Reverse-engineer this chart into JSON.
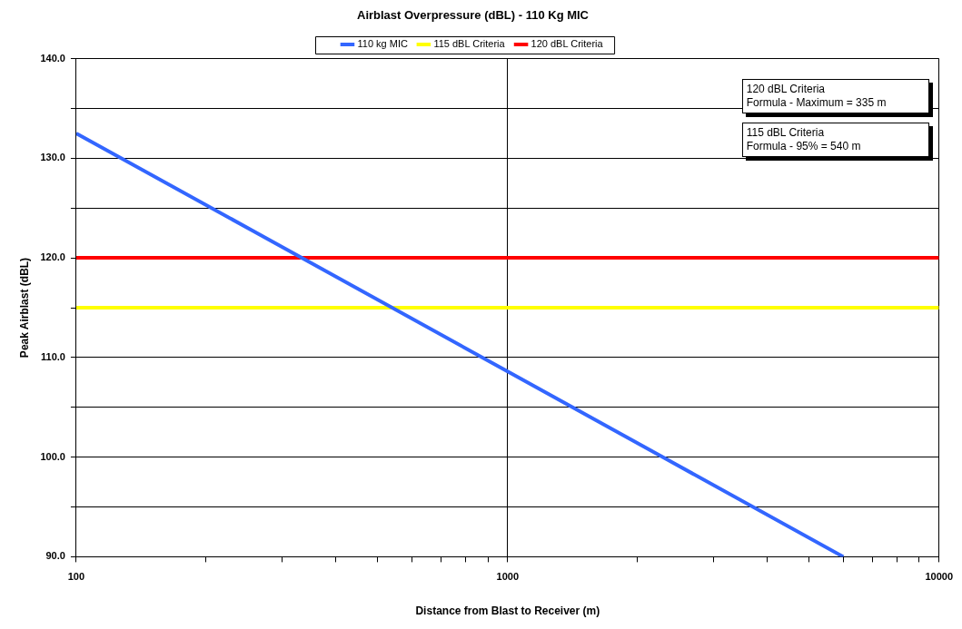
{
  "chart_data": {
    "type": "line",
    "title": "Airblast Overpressure (dBL) - 110 Kg MIC",
    "xlabel": "Distance from Blast to Receiver (m)",
    "ylabel": "Peak Airblast (dBL)",
    "log": "x",
    "xlim": [
      100,
      10000
    ],
    "ylim": [
      90,
      140
    ],
    "xticks": [
      100,
      {
        "value": 200,
        "label": null
      },
      {
        "value": 300,
        "label": null
      },
      {
        "value": 400,
        "label": null
      },
      {
        "value": 500,
        "label": null
      },
      {
        "value": 600,
        "label": null
      },
      {
        "value": 700,
        "label": null
      },
      {
        "value": 800,
        "label": null
      },
      {
        "value": 900,
        "label": null
      },
      1000,
      {
        "value": 2000,
        "label": null
      },
      {
        "value": 3000,
        "label": null
      },
      {
        "value": 4000,
        "label": null
      },
      {
        "value": 5000,
        "label": null
      },
      {
        "value": 6000,
        "label": null
      },
      {
        "value": 7000,
        "label": null
      },
      {
        "value": 8000,
        "label": null
      },
      {
        "value": 9000,
        "label": null
      },
      10000
    ],
    "yticks": [
      {
        "value": 90,
        "label": "90.0"
      },
      {
        "value": 95,
        "label": null
      },
      {
        "value": 100,
        "label": "100.0"
      },
      {
        "value": 105,
        "label": null
      },
      {
        "value": 110,
        "label": "110.0"
      },
      {
        "value": 115,
        "label": null
      },
      {
        "value": 120,
        "label": "120.0"
      },
      {
        "value": 125,
        "label": null
      },
      {
        "value": 130,
        "label": "130.0"
      },
      {
        "value": 135,
        "label": null
      },
      {
        "value": 140,
        "label": "140.0"
      }
    ],
    "grid": true,
    "legend": "top",
    "marker": "none",
    "line_style": "solid",
    "series": [
      {
        "name": "110 kg MIC",
        "color": "#3366ff",
        "x": [
          100,
          1000,
          6000
        ],
        "values": [
          132.5,
          108.6,
          90
        ]
      },
      {
        "name": "115 dBL Criteria",
        "color": "#ffff00",
        "x": [
          100,
          10000
        ],
        "values": [
          115,
          115
        ]
      },
      {
        "name": "120 dBL Criteria",
        "color": "#ff0000",
        "x": [
          100,
          10000
        ],
        "values": [
          120,
          120
        ]
      }
    ],
    "annotations": [
      "120 dBL Criteria\nFormula - Maximum = 335 m",
      "115 dBL Criteria\nFormula - 95% = 540 m"
    ]
  }
}
